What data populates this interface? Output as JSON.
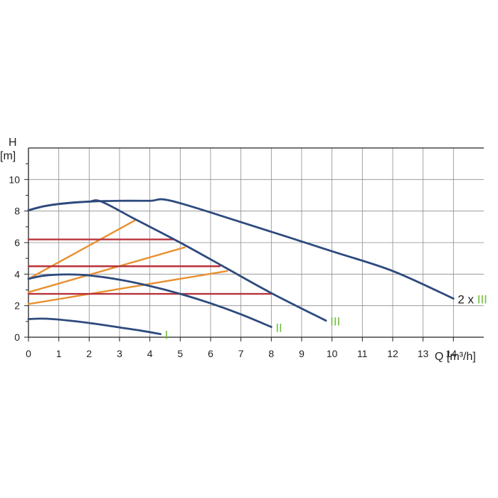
{
  "chart_data": {
    "type": "line",
    "title": "",
    "ylabel_symbol": "H",
    "ylabel_unit": "[m]",
    "xlabel": "Q [m³/h]",
    "xlim": [
      0,
      15
    ],
    "ylim": [
      0,
      12
    ],
    "x_ticks": [
      0,
      1,
      2,
      3,
      4,
      5,
      6,
      7,
      8,
      9,
      10,
      11,
      12,
      13,
      14
    ],
    "y_ticks": [
      0,
      2,
      4,
      6,
      8,
      10
    ],
    "grid": true,
    "colors": {
      "pump_curve": "#2e4a7d",
      "constant_pressure": "#b8323c",
      "proportional_pressure": "#e8902f",
      "roman_label": "#6cbf3a",
      "prefix_label": "#222222",
      "grid": "#8c8c8c",
      "axis": "#222222"
    },
    "series": [
      {
        "name": "I",
        "label_prefix": "",
        "label_roman": "I",
        "kind": "pump_curve",
        "x": [
          0,
          0.4,
          0.8,
          1.5,
          2.2,
          3.0,
          3.7,
          4.35
        ],
        "y": [
          1.15,
          1.18,
          1.15,
          1.02,
          0.85,
          0.62,
          0.42,
          0.2
        ]
      },
      {
        "name": "II",
        "label_prefix": "",
        "label_roman": "II",
        "kind": "pump_curve",
        "x": [
          0,
          0.5,
          1.3,
          2.0,
          3.0,
          4.0,
          5.0,
          6.0,
          7.0,
          8.0
        ],
        "y": [
          3.7,
          3.9,
          3.98,
          3.92,
          3.65,
          3.25,
          2.75,
          2.15,
          1.45,
          0.65
        ]
      },
      {
        "name": "III",
        "label_prefix": "",
        "label_roman": "III",
        "kind": "pump_curve",
        "x": [
          0,
          0.5,
          1.0,
          1.5,
          2.0,
          2.4,
          3.5,
          5.0,
          6.5,
          8.0,
          9.8
        ],
        "y": [
          8.05,
          8.3,
          8.45,
          8.55,
          8.6,
          8.6,
          7.5,
          6.0,
          4.4,
          2.8,
          1.05
        ]
      },
      {
        "name": "2 x III",
        "label_prefix": "2 x ",
        "label_roman": "III",
        "kind": "pump_curve",
        "x": [
          0,
          0.5,
          1.0,
          2.0,
          3.0,
          4.0,
          4.7,
          7.0,
          10.0,
          12.0,
          14.0
        ],
        "y": [
          8.05,
          8.3,
          8.45,
          8.6,
          8.65,
          8.65,
          8.65,
          7.3,
          5.45,
          4.2,
          2.45
        ]
      },
      {
        "kind": "constant_pressure",
        "x": [
          0,
          4.8
        ],
        "y": [
          6.2,
          6.2
        ]
      },
      {
        "kind": "constant_pressure",
        "x": [
          0,
          6.3
        ],
        "y": [
          4.5,
          4.5
        ]
      },
      {
        "kind": "constant_pressure",
        "x": [
          0,
          8.0
        ],
        "y": [
          2.75,
          2.75
        ]
      },
      {
        "kind": "proportional_pressure",
        "x": [
          0,
          3.5
        ],
        "y": [
          3.7,
          7.4
        ]
      },
      {
        "kind": "proportional_pressure",
        "x": [
          0,
          5.15
        ],
        "y": [
          2.85,
          5.7
        ]
      },
      {
        "kind": "proportional_pressure",
        "x": [
          0,
          6.55
        ],
        "y": [
          2.1,
          4.2
        ]
      }
    ]
  }
}
